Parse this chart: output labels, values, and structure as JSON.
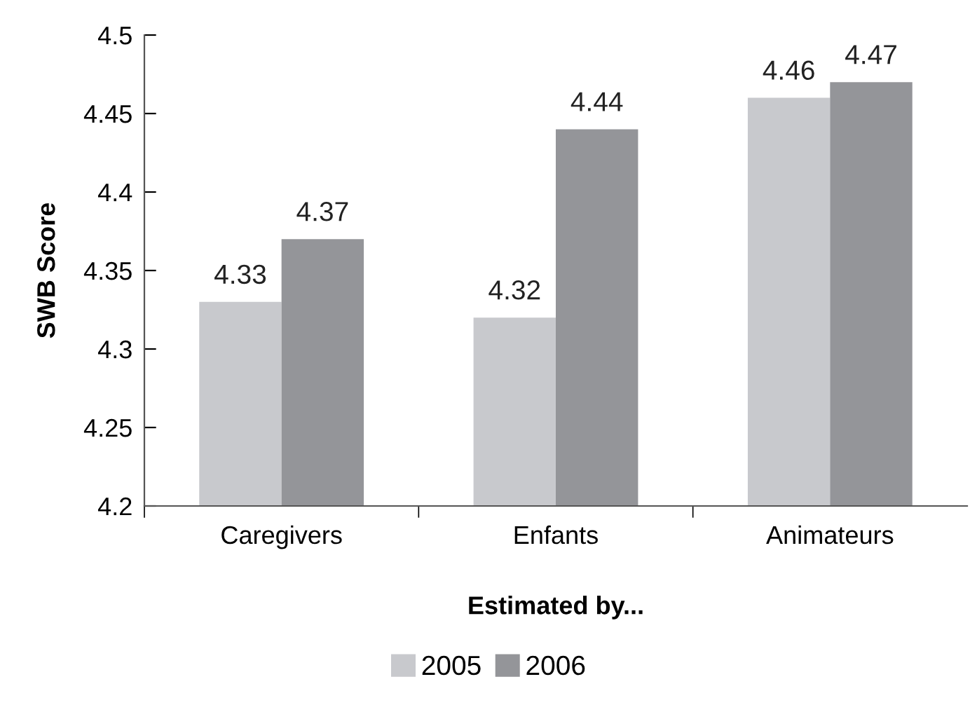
{
  "chart_data": {
    "type": "bar",
    "xlabel": "Estimated by...",
    "ylabel": "SWB Score",
    "categories": [
      "Caregivers",
      "Enfants",
      "Animateurs"
    ],
    "series": [
      {
        "name": "2005",
        "color": "#c8c9cd",
        "values": [
          4.33,
          4.32,
          4.46
        ]
      },
      {
        "name": "2006",
        "color": "#949599",
        "values": [
          4.37,
          4.44,
          4.47
        ]
      }
    ],
    "ylim": [
      4.2,
      4.5
    ],
    "yticks": [
      4.2,
      4.25,
      4.3,
      4.35,
      4.4,
      4.45,
      4.5
    ],
    "data_labels": true,
    "legend": "bottom",
    "grid": false
  }
}
